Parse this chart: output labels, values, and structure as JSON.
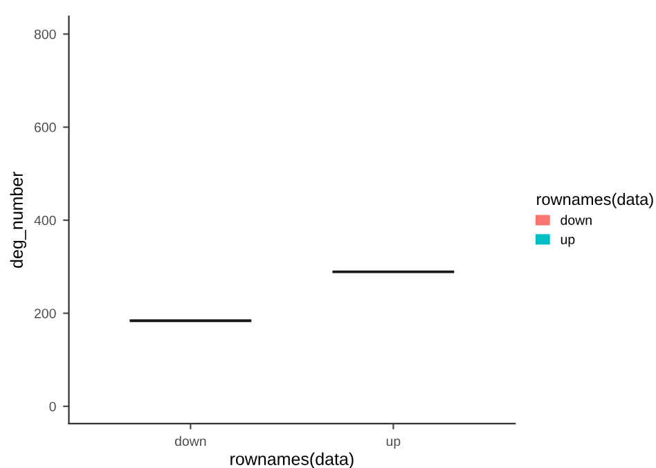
{
  "chart_data": {
    "type": "box",
    "xlabel": "rownames(data)",
    "ylabel": "deg_number",
    "legend_title": "rownames(data)",
    "legend": "right",
    "grid": false,
    "categories": [
      "down",
      "up"
    ],
    "series": [
      {
        "name": "down",
        "color": "#f8766d",
        "boxes": [
          {
            "low": 184,
            "q1": 184,
            "median": 184,
            "q3": 184,
            "high": 184
          },
          null
        ]
      },
      {
        "name": "up",
        "color": "#00bfc4",
        "boxes": [
          null,
          {
            "low": 289,
            "q1": 289,
            "median": 289,
            "q3": 289,
            "high": 289
          }
        ]
      }
    ],
    "ylim": [
      -37,
      838
    ],
    "yticks": [
      0,
      200,
      400,
      600,
      800
    ]
  }
}
